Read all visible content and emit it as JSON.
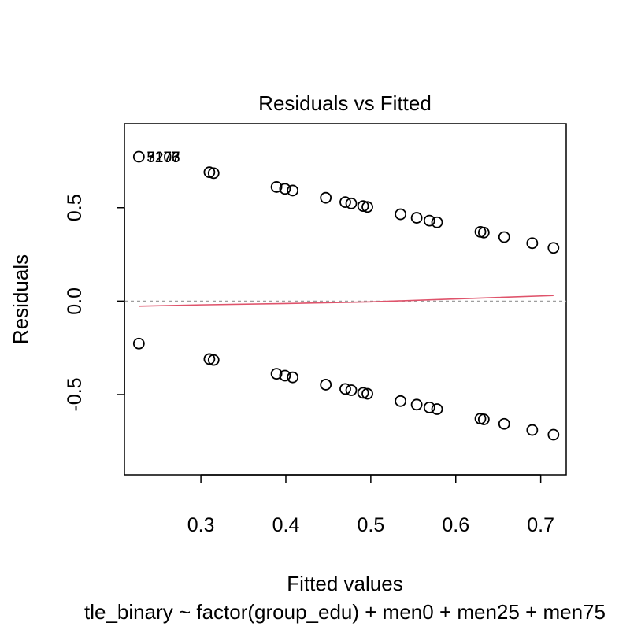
{
  "chart_data": {
    "type": "scatter",
    "title": "Residuals vs Fitted",
    "xlabel": "Fitted values",
    "ylabel": "Residuals",
    "sub_caption": "tle_binary ~ factor(group_edu) + men0 + men25 + men75",
    "xlim": [
      0.21,
      0.73
    ],
    "ylim": [
      -0.93,
      0.95
    ],
    "x_ticks": [
      0.3,
      0.4,
      0.5,
      0.6,
      0.7
    ],
    "x_tick_labels": [
      "0.3",
      "0.4",
      "0.5",
      "0.6",
      "0.7"
    ],
    "y_ticks": [
      -0.5,
      0.0,
      0.5
    ],
    "y_tick_labels": [
      "-0.5",
      "0.0",
      "0.5"
    ],
    "zero_line": 0,
    "points": [
      [
        0.227,
        0.773
      ],
      [
        0.31,
        0.69
      ],
      [
        0.315,
        0.685
      ],
      [
        0.389,
        0.611
      ],
      [
        0.399,
        0.601
      ],
      [
        0.408,
        0.592
      ],
      [
        0.447,
        0.553
      ],
      [
        0.47,
        0.53
      ],
      [
        0.477,
        0.523
      ],
      [
        0.491,
        0.509
      ],
      [
        0.496,
        0.504
      ],
      [
        0.535,
        0.465
      ],
      [
        0.554,
        0.446
      ],
      [
        0.569,
        0.431
      ],
      [
        0.578,
        0.422
      ],
      [
        0.629,
        0.371
      ],
      [
        0.633,
        0.367
      ],
      [
        0.657,
        0.343
      ],
      [
        0.69,
        0.31
      ],
      [
        0.715,
        0.285
      ],
      [
        0.227,
        -0.227
      ],
      [
        0.31,
        -0.31
      ],
      [
        0.315,
        -0.315
      ],
      [
        0.389,
        -0.389
      ],
      [
        0.399,
        -0.399
      ],
      [
        0.408,
        -0.408
      ],
      [
        0.447,
        -0.447
      ],
      [
        0.47,
        -0.47
      ],
      [
        0.477,
        -0.477
      ],
      [
        0.491,
        -0.491
      ],
      [
        0.496,
        -0.496
      ],
      [
        0.535,
        -0.535
      ],
      [
        0.554,
        -0.554
      ],
      [
        0.569,
        -0.569
      ],
      [
        0.578,
        -0.578
      ],
      [
        0.629,
        -0.629
      ],
      [
        0.633,
        -0.633
      ],
      [
        0.657,
        -0.657
      ],
      [
        0.69,
        -0.69
      ],
      [
        0.715,
        -0.715
      ]
    ],
    "point_labels": [
      {
        "x": 0.227,
        "y": 0.773,
        "text": "3207"
      },
      {
        "x": 0.227,
        "y": 0.773,
        "text": "5206"
      },
      {
        "x": 0.227,
        "y": 0.773,
        "text": "7173"
      }
    ],
    "smooth_line": {
      "color": "#DF536B",
      "x": [
        0.227,
        0.3,
        0.4,
        0.5,
        0.6,
        0.715
      ],
      "y": [
        -0.027,
        -0.02,
        -0.013,
        -0.004,
        0.012,
        0.03
      ]
    },
    "colors": {
      "points": "#000000",
      "smooth": "#DF536B",
      "zero_line": "#9E9E9E"
    }
  }
}
